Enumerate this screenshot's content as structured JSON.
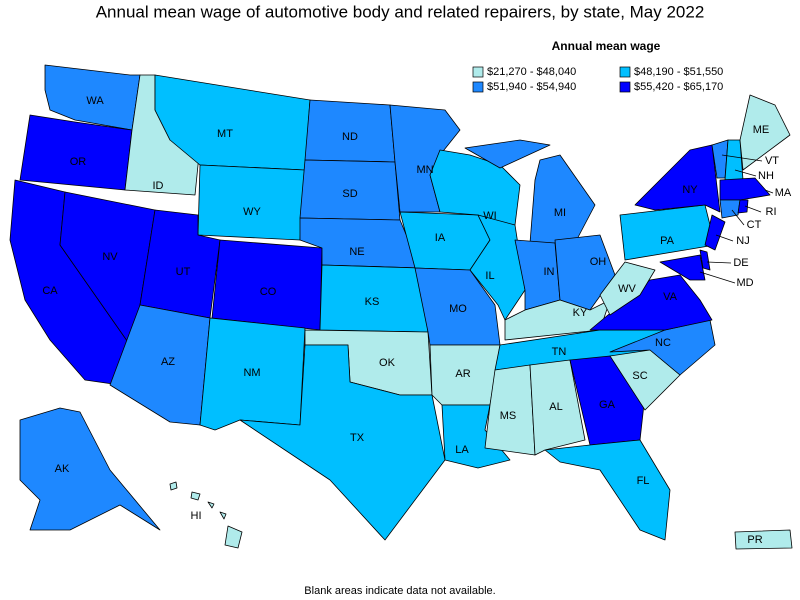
{
  "title": "Annual mean wage of automotive body and related repairers, by state, May 2022",
  "legend": {
    "title": "Annual mean wage",
    "items": [
      {
        "label": "$21,270 - $48,040",
        "color": "#b0ebeb"
      },
      {
        "label": "$48,190 - $51,550",
        "color": "#00bfff"
      },
      {
        "label": "$51,940 - $54,940",
        "color": "#1e88ff"
      },
      {
        "label": "$55,420 - $65,170",
        "color": "#0000ff"
      }
    ]
  },
  "states": [
    {
      "label": "WA",
      "bin": 2
    },
    {
      "label": "OR",
      "bin": 3
    },
    {
      "label": "CA",
      "bin": 3
    },
    {
      "label": "NV",
      "bin": 3
    },
    {
      "label": "ID",
      "bin": 0
    },
    {
      "label": "MT",
      "bin": 1
    },
    {
      "label": "WY",
      "bin": 1
    },
    {
      "label": "UT",
      "bin": 3
    },
    {
      "label": "CO",
      "bin": 3
    },
    {
      "label": "AZ",
      "bin": 2
    },
    {
      "label": "NM",
      "bin": 1
    },
    {
      "label": "ND",
      "bin": 2
    },
    {
      "label": "SD",
      "bin": 2
    },
    {
      "label": "NE",
      "bin": 2
    },
    {
      "label": "KS",
      "bin": 1
    },
    {
      "label": "OK",
      "bin": 0
    },
    {
      "label": "TX",
      "bin": 1
    },
    {
      "label": "MN",
      "bin": 2
    },
    {
      "label": "IA",
      "bin": 1
    },
    {
      "label": "MO",
      "bin": 2
    },
    {
      "label": "AR",
      "bin": 0
    },
    {
      "label": "LA",
      "bin": 1
    },
    {
      "label": "WI",
      "bin": 1
    },
    {
      "label": "IL",
      "bin": 1
    },
    {
      "label": "MI",
      "bin": 2
    },
    {
      "label": "IN",
      "bin": 2
    },
    {
      "label": "OH",
      "bin": 2
    },
    {
      "label": "KY",
      "bin": 0
    },
    {
      "label": "TN",
      "bin": 1
    },
    {
      "label": "MS",
      "bin": 0
    },
    {
      "label": "AL",
      "bin": 0
    },
    {
      "label": "GA",
      "bin": 3
    },
    {
      "label": "FL",
      "bin": 1
    },
    {
      "label": "SC",
      "bin": 0
    },
    {
      "label": "NC",
      "bin": 2
    },
    {
      "label": "VA",
      "bin": 3
    },
    {
      "label": "WV",
      "bin": 0
    },
    {
      "label": "PA",
      "bin": 1
    },
    {
      "label": "NY",
      "bin": 3
    },
    {
      "label": "VT",
      "bin": 2
    },
    {
      "label": "NH",
      "bin": 1
    },
    {
      "label": "ME",
      "bin": 0
    },
    {
      "label": "MA",
      "bin": 3
    },
    {
      "label": "CT",
      "bin": 2
    },
    {
      "label": "RI",
      "bin": 3
    },
    {
      "label": "NJ",
      "bin": 3
    },
    {
      "label": "DE",
      "bin": 3
    },
    {
      "label": "MD",
      "bin": 3
    },
    {
      "label": "AK",
      "bin": 2
    },
    {
      "label": "HI",
      "bin": 0
    },
    {
      "label": "PR",
      "bin": 0
    }
  ],
  "note": "Blank areas indicate data not available."
}
